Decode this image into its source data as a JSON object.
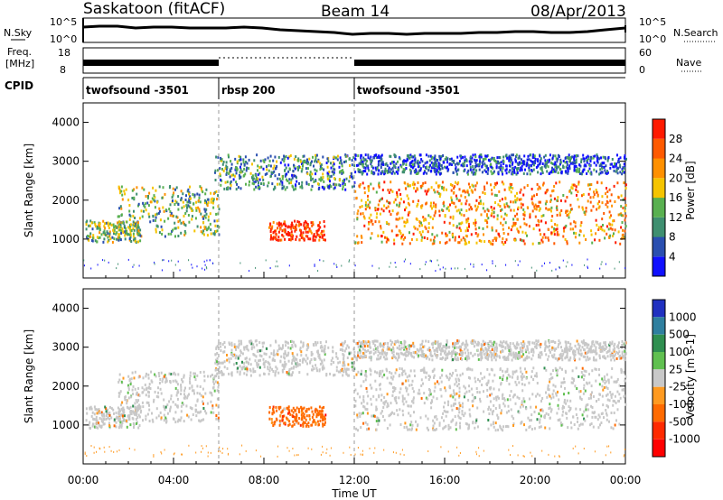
{
  "header": {
    "station": "Saskatoon (fitACF)",
    "beam": "Beam 14",
    "date": "08/Apr/2013"
  },
  "top_panel": {
    "left_label": "N.Sky",
    "right_label": "N.Search",
    "left_ticks": [
      "10^5",
      "10^0"
    ],
    "right_ticks": [
      "10^5",
      "10^0"
    ]
  },
  "freq_panel": {
    "left_label_1": "Freq.",
    "left_label_2": "[MHz]",
    "right_label": "Nave",
    "left_ticks": [
      "18",
      "8"
    ],
    "right_ticks": [
      "60",
      "0"
    ]
  },
  "cpid": {
    "label": "CPID",
    "segments": [
      {
        "name": "twofsound -3501",
        "start": 0,
        "end": 6
      },
      {
        "name": "rbsp 200",
        "start": 6,
        "end": 12
      },
      {
        "name": "twofsound -3501",
        "start": 12,
        "end": 24
      }
    ]
  },
  "chart_data": [
    {
      "type": "heatmap",
      "title": "",
      "ylabel": "Slant Range [km]",
      "xlabel": "",
      "ylim": [
        0,
        4500
      ],
      "yticks": [
        "1000",
        "2000",
        "3000",
        "4000"
      ],
      "colorbar": {
        "label": "Power [dB]",
        "ticks": [
          "4",
          "8",
          "12",
          "16",
          "20",
          "24",
          "28"
        ],
        "colors": [
          "#1010ff",
          "#2a4fb0",
          "#3f8f70",
          "#59b050",
          "#f5c400",
          "#ff9000",
          "#ff5a00",
          "#ff1a00"
        ]
      }
    },
    {
      "type": "heatmap",
      "title": "",
      "ylabel": "Slant Range [km]",
      "xlabel": "Time UT",
      "ylim": [
        0,
        4500
      ],
      "yticks": [
        "1000",
        "2000",
        "3000",
        "4000"
      ],
      "xticks": [
        "00:00",
        "04:00",
        "08:00",
        "12:00",
        "16:00",
        "20:00",
        "00:00"
      ],
      "colorbar": {
        "label": "Velocity [m s-1]",
        "ticks": [
          "1000",
          "500",
          "100",
          "25",
          "-25",
          "-100",
          "-500",
          "-1000"
        ],
        "colors": [
          "#2030c0",
          "#2f7f9f",
          "#2f8f50",
          "#60c050",
          "#c8c8c8",
          "#ff9a20",
          "#ff6a00",
          "#ff2a00",
          "#ff0000"
        ]
      }
    }
  ]
}
